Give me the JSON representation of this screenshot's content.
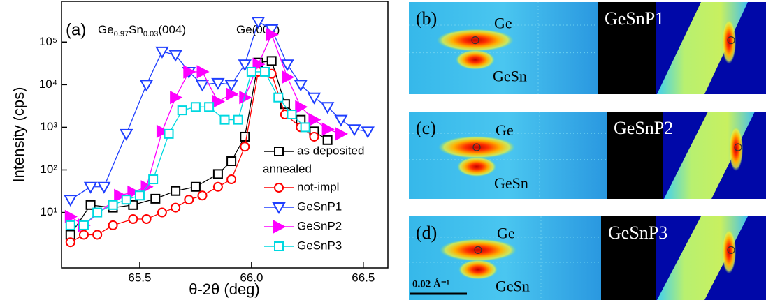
{
  "chart_data": {
    "type": "line",
    "yscale": "log",
    "xlabel": "θ-2θ (deg)",
    "ylabel": "Intensity (cps)",
    "xlim": [
      65.15,
      66.61
    ],
    "ylim": [
      0.5,
      900000
    ],
    "xticks": [
      65.5,
      {
        "value": 66,
        "label": "66.0"
      },
      66.5
    ],
    "yticks": [
      {
        "value": 10,
        "label": "10¹"
      },
      {
        "value": 100,
        "label": "10²"
      },
      {
        "value": 1000,
        "label": "10³"
      },
      {
        "value": 10000,
        "label": "10⁴"
      },
      {
        "value": 100000,
        "label": "10⁵"
      }
    ],
    "panel_label": "(a)",
    "annotations": [
      {
        "parts": [
          "Ge",
          "0.97",
          "Sn",
          "0.03",
          "(004)"
        ]
      },
      {
        "parts": [
          "Ge(004)"
        ]
      }
    ],
    "legend_group_label": "annealed",
    "series": [
      {
        "name": "as deposited",
        "color": "#000000",
        "marker": "square",
        "x": [
          65.19,
          65.28,
          65.38,
          65.47,
          65.57,
          65.66,
          65.75,
          65.85,
          65.91,
          65.97,
          66.03,
          66.09,
          66.15,
          66.22,
          66.28,
          66.34
        ],
        "values": [
          3,
          15,
          13,
          15,
          21,
          32,
          40,
          80,
          160,
          600,
          33000,
          36000,
          3500,
          1500,
          800,
          500
        ]
      },
      {
        "name": "not-impl",
        "color": "#ff0000",
        "marker": "circle",
        "x": [
          65.19,
          65.25,
          65.31,
          65.38,
          65.47,
          65.53,
          65.6,
          65.66,
          65.72,
          65.78,
          65.85,
          65.91,
          65.97,
          66.03,
          66.09,
          66.15,
          66.22,
          66.28
        ],
        "values": [
          2,
          3,
          3,
          5,
          7,
          7,
          10,
          13,
          20,
          25,
          40,
          60,
          350,
          20000,
          18000,
          2000,
          1000,
          600
        ]
      },
      {
        "name": "GeSnP1",
        "color": "#1f3fff",
        "marker": "triangle-down",
        "x": [
          65.19,
          65.28,
          65.34,
          65.44,
          65.53,
          65.6,
          65.66,
          65.72,
          65.78,
          65.85,
          65.91,
          65.97,
          66.03,
          66.09,
          66.16,
          66.22,
          66.28,
          66.34,
          66.4,
          66.46,
          66.52
        ],
        "values": [
          20,
          40,
          40,
          700,
          10000,
          60000,
          50000,
          20000,
          10000,
          11000,
          10000,
          30000,
          300000,
          200000,
          30000,
          10000,
          5000,
          3000,
          1500,
          900,
          800
        ]
      },
      {
        "name": "GeSnP2",
        "color": "#ff00ff",
        "marker": "triangle-right",
        "x": [
          65.19,
          65.25,
          65.41,
          65.47,
          65.53,
          65.6,
          65.66,
          65.72,
          65.78,
          65.85,
          65.91,
          65.97,
          66.03,
          66.09,
          66.16,
          66.22,
          66.28,
          66.34,
          66.4
        ],
        "values": [
          8,
          5,
          25,
          30,
          40,
          800,
          5000,
          20000,
          20000,
          4000,
          6000,
          5000,
          30000,
          150000,
          15000,
          3000,
          1500,
          900,
          700
        ]
      },
      {
        "name": "GeSnP3",
        "color": "#00d8e0",
        "marker": "square",
        "x": [
          65.19,
          65.25,
          65.31,
          65.38,
          65.44,
          65.5,
          65.56,
          65.63,
          65.69,
          65.75,
          65.81,
          65.88,
          65.94,
          66.0,
          66.06,
          66.12,
          66.18,
          66.24
        ],
        "values": [
          5,
          5,
          10,
          15,
          20,
          25,
          60,
          700,
          2500,
          3000,
          3000,
          1500,
          1500,
          20000,
          20000,
          5000,
          2000,
          1000
        ]
      }
    ]
  },
  "maps": {
    "panels": [
      {
        "label": "(b)",
        "ge": "Ge",
        "gesn": "GeSn",
        "sample": "GeSnP1"
      },
      {
        "label": "(c)",
        "ge": "Ge",
        "gesn": "GeSn",
        "sample": "GeSnP2"
      },
      {
        "label": "(d)",
        "ge": "Ge",
        "gesn": "GeSn",
        "sample": "GeSnP3"
      }
    ],
    "scale_bar": "0.02 Å⁻¹"
  }
}
